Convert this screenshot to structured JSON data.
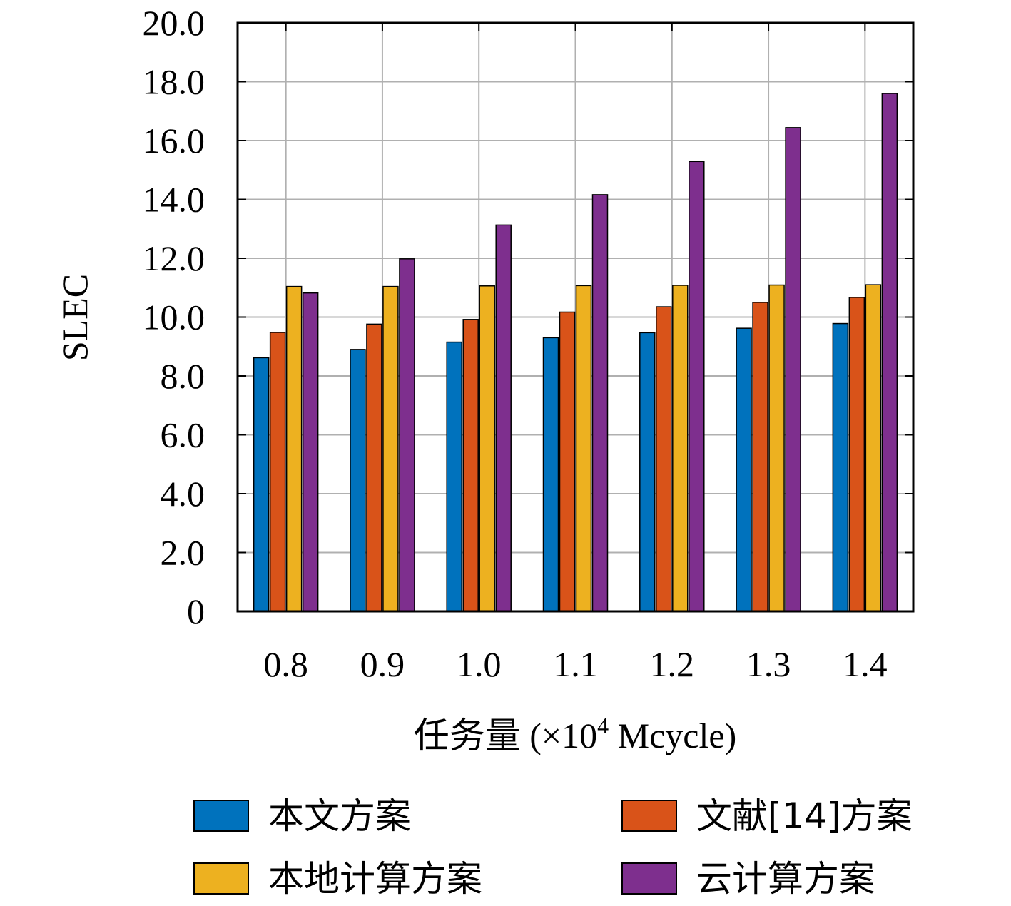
{
  "chart_data": {
    "type": "bar",
    "categories": [
      "0.8",
      "0.9",
      "1.0",
      "1.1",
      "1.2",
      "1.3",
      "1.4"
    ],
    "series": [
      {
        "name": "本文方案",
        "color": "#0072BD",
        "values": [
          8.62,
          8.9,
          9.15,
          9.3,
          9.47,
          9.62,
          9.78
        ]
      },
      {
        "name": "文献[14]方案",
        "color": "#D95319",
        "values": [
          9.48,
          9.76,
          9.92,
          10.17,
          10.35,
          10.5,
          10.67
        ]
      },
      {
        "name": "本地计算方案",
        "color": "#EDB120",
        "values": [
          11.04,
          11.04,
          11.06,
          11.07,
          11.08,
          11.09,
          11.1
        ]
      },
      {
        "name": "云计算方案",
        "color": "#7E2F8E",
        "values": [
          10.82,
          11.98,
          13.13,
          14.16,
          15.29,
          16.44,
          17.6
        ]
      }
    ],
    "ylabel": "SLEC",
    "xlabel": "任务量 (×10",
    "xlabel_superscript": "4",
    "xlabel_suffix": " Mcycle)",
    "ylim": [
      0,
      20
    ],
    "yticks": [
      "0",
      "2.0",
      "4.0",
      "6.0",
      "8.0",
      "10.0",
      "12.0",
      "14.0",
      "16.0",
      "18.0",
      "20.0"
    ],
    "grid": true,
    "legend_position": "bottom"
  }
}
